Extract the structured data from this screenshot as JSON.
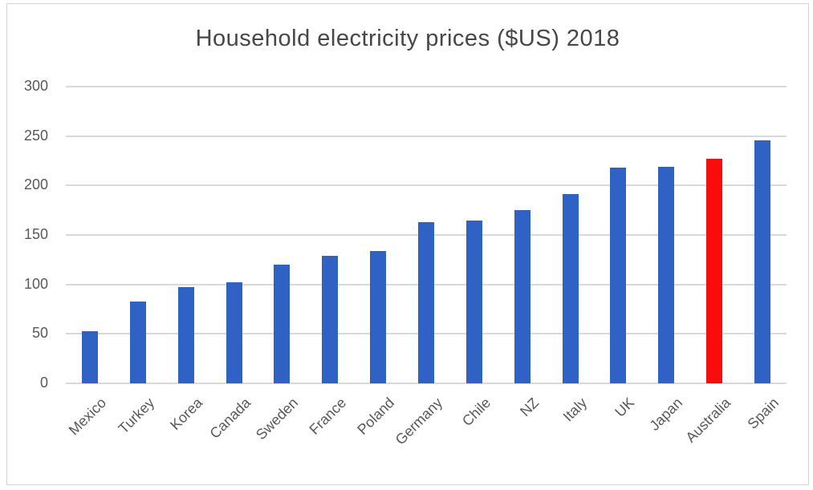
{
  "chart": {
    "title": "Household electricity prices ($US) 2018"
  },
  "chart_data": {
    "type": "bar",
    "title": "Household electricity prices ($US) 2018",
    "categories": [
      "Mexico",
      "Turkey",
      "Korea",
      "Canada",
      "Sweden",
      "France",
      "Poland",
      "Germany",
      "Chile",
      "NZ",
      "Italy",
      "UK",
      "Japan",
      "Australia",
      "Spain"
    ],
    "values": [
      53,
      83,
      97,
      102,
      120,
      129,
      134,
      163,
      165,
      175,
      191,
      218,
      219,
      227,
      246
    ],
    "highlight_category": "Australia",
    "xlabel": "",
    "ylabel": "",
    "ylim": [
      0,
      300
    ],
    "yticks": [
      0,
      50,
      100,
      150,
      200,
      250,
      300
    ],
    "grid": true,
    "legend_position": "none",
    "colors": {
      "bar": "#2f62c4",
      "highlight": "#f80c0c",
      "gridline": "#d9d9d9",
      "axis_labels": "#595959",
      "title": "#474747",
      "frame_border": "#d5d5d5"
    }
  }
}
